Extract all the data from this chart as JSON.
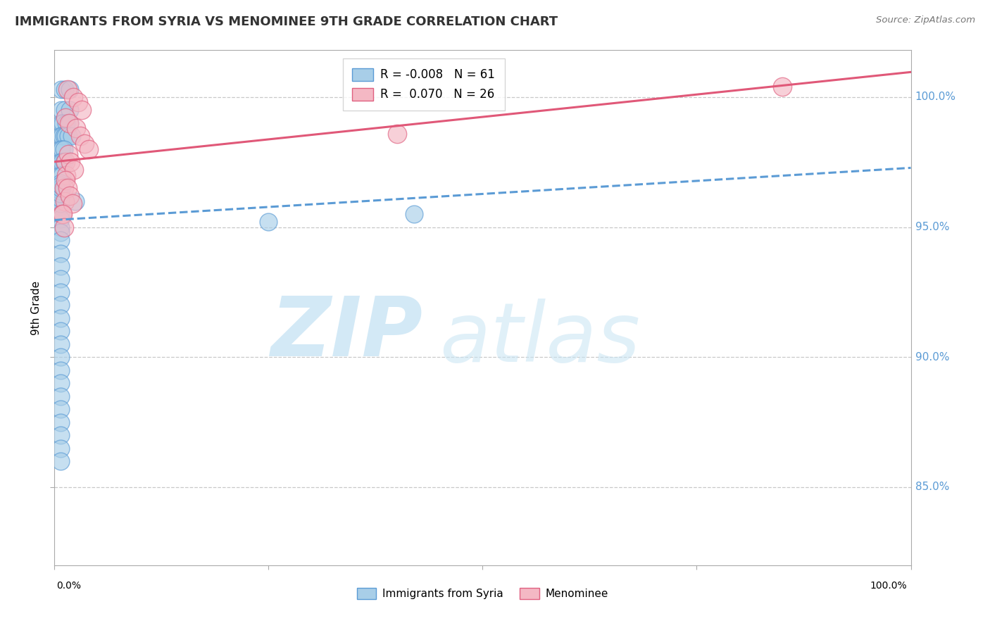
{
  "title": "IMMIGRANTS FROM SYRIA VS MENOMINEE 9TH GRADE CORRELATION CHART",
  "source": "Source: ZipAtlas.com",
  "ylabel": "9th Grade",
  "xlim": [
    0.0,
    100.0
  ],
  "ylim": [
    82.0,
    101.8
  ],
  "ytick_labels": [
    "85.0%",
    "90.0%",
    "95.0%",
    "100.0%"
  ],
  "ytick_values": [
    85.0,
    90.0,
    95.0,
    100.0
  ],
  "blue_R": -0.008,
  "blue_N": 61,
  "pink_R": 0.07,
  "pink_N": 26,
  "blue_color": "#A8CEE8",
  "pink_color": "#F4B8C4",
  "blue_edge_color": "#5B9BD5",
  "pink_edge_color": "#E06080",
  "blue_line_color": "#5B9BD5",
  "pink_line_color": "#E05878",
  "watermark_zip_color": "#C8E4F4",
  "watermark_atlas_color": "#C8E4F4",
  "legend_blue_label": "Immigrants from Syria",
  "legend_pink_label": "Menominee",
  "blue_scatter_x": [
    0.8,
    1.2,
    1.8,
    0.8,
    1.2,
    1.8,
    0.8,
    1.0,
    1.4,
    1.8,
    0.7,
    0.9,
    1.1,
    1.3,
    1.6,
    2.0,
    0.7,
    0.9,
    1.1,
    0.7,
    0.9,
    1.1,
    0.7,
    0.9,
    0.7,
    0.9,
    0.7,
    0.7,
    0.7,
    0.7,
    0.7,
    0.7,
    0.7,
    0.7,
    0.7,
    0.7,
    0.7,
    0.7,
    0.7,
    0.7,
    0.7,
    0.7,
    0.7,
    0.7,
    0.7,
    0.7,
    0.7,
    0.7,
    0.7,
    0.7,
    0.7,
    42.0,
    2.4,
    0.7,
    0.7,
    0.7,
    0.7,
    0.7,
    0.7,
    0.7,
    25.0
  ],
  "blue_scatter_y": [
    100.3,
    100.3,
    100.3,
    99.5,
    99.5,
    99.5,
    99.0,
    99.0,
    99.0,
    99.0,
    98.5,
    98.5,
    98.5,
    98.5,
    98.5,
    98.5,
    98.0,
    98.0,
    98.0,
    97.5,
    97.5,
    97.5,
    97.0,
    97.0,
    96.7,
    96.5,
    96.3,
    96.0,
    95.8,
    95.5,
    95.3,
    95.0,
    94.8,
    94.5,
    94.0,
    93.5,
    93.0,
    92.5,
    92.0,
    91.5,
    91.0,
    90.5,
    90.0,
    89.5,
    89.0,
    88.5,
    88.0,
    87.5,
    87.0,
    86.5,
    86.0,
    95.5,
    96.0,
    96.2,
    95.9,
    96.1,
    96.4,
    96.3,
    96.5,
    96.6,
    95.2
  ],
  "pink_scatter_x": [
    1.5,
    2.2,
    2.8,
    3.2,
    1.3,
    1.7,
    2.5,
    3.0,
    3.5,
    4.0,
    1.3,
    1.4,
    1.1,
    1.2,
    0.9,
    40.0,
    85.0,
    1.6,
    1.9,
    2.3,
    1.3,
    1.5,
    1.8,
    2.1,
    1.0,
    1.1
  ],
  "pink_scatter_y": [
    100.3,
    100.0,
    99.8,
    99.5,
    99.2,
    99.0,
    98.8,
    98.5,
    98.2,
    98.0,
    97.5,
    97.0,
    96.5,
    96.0,
    95.5,
    98.6,
    100.4,
    97.8,
    97.5,
    97.2,
    96.8,
    96.5,
    96.2,
    95.9,
    95.5,
    95.0
  ]
}
